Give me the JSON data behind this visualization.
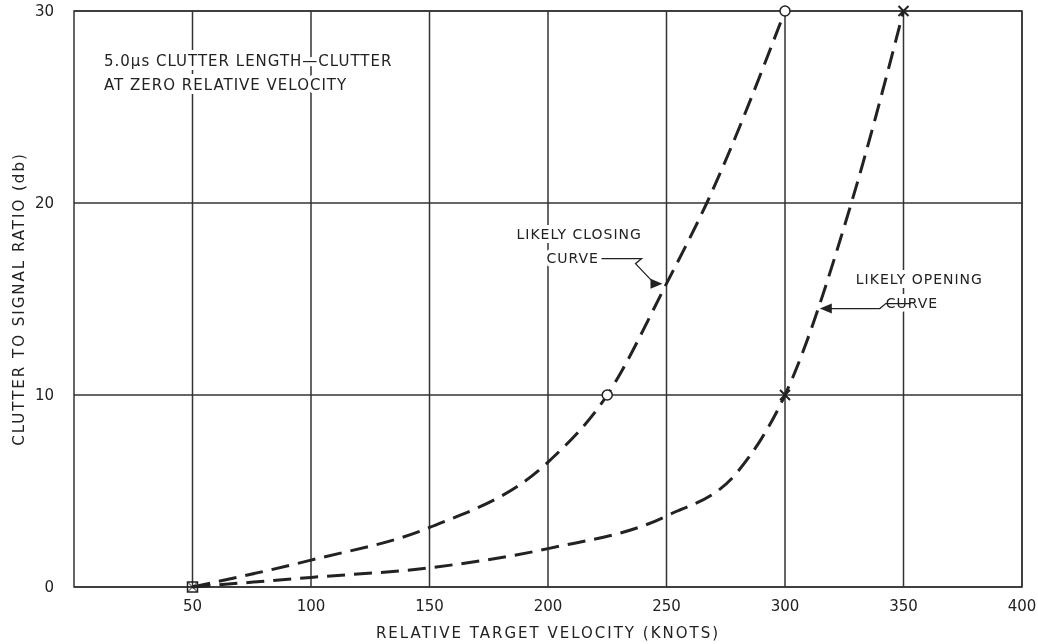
{
  "chart_data": {
    "type": "line",
    "xlabel": "RELATIVE TARGET VELOCITY (KNOTS)",
    "ylabel": "CLUTTER TO SIGNAL RATIO (db)",
    "xlim": [
      0,
      400
    ],
    "xticks": [
      50,
      100,
      150,
      200,
      250,
      300,
      350,
      400
    ],
    "ylim": [
      0,
      30
    ],
    "yticks": [
      0,
      10,
      20,
      30
    ],
    "grid": true,
    "line_style": "dashed",
    "marker": "none",
    "series": [
      {
        "color": "#222222",
        "x": [
          50,
          100,
          150,
          200,
          225,
          250,
          267,
          300
        ],
        "values": [
          0,
          1.4,
          3.1,
          6.5,
          10,
          15.8,
          20,
          30
        ]
      },
      {
        "color": "#222222",
        "x": [
          50,
          100,
          150,
          200,
          250,
          280,
          300,
          328,
          350
        ],
        "values": [
          0,
          0.5,
          1,
          2,
          3.7,
          6,
          10,
          20,
          30
        ]
      },
      {
        "type": "scatter",
        "marker": "circle",
        "color": "#222222",
        "x": [
          225,
          300
        ],
        "values": [
          10,
          30
        ]
      },
      {
        "type": "scatter",
        "marker": "cross",
        "color": "#222222",
        "x": [
          300,
          350
        ],
        "values": [
          10,
          30
        ]
      },
      {
        "type": "scatter",
        "marker": "square",
        "color": "#222222",
        "x": [
          50
        ],
        "values": [
          0
        ]
      }
    ],
    "annotations": [
      "5.0μs CLUTTER LENGTH—CLUTTER\nAT ZERO RELATIVE VELOCITY",
      {
        "text": "LIKELY CLOSING\nCURVE",
        "x": 250,
        "y": 15.8
      },
      {
        "text": "LIKELY OPENING\nCURVE",
        "x": 313,
        "y": 14.5
      }
    ]
  }
}
